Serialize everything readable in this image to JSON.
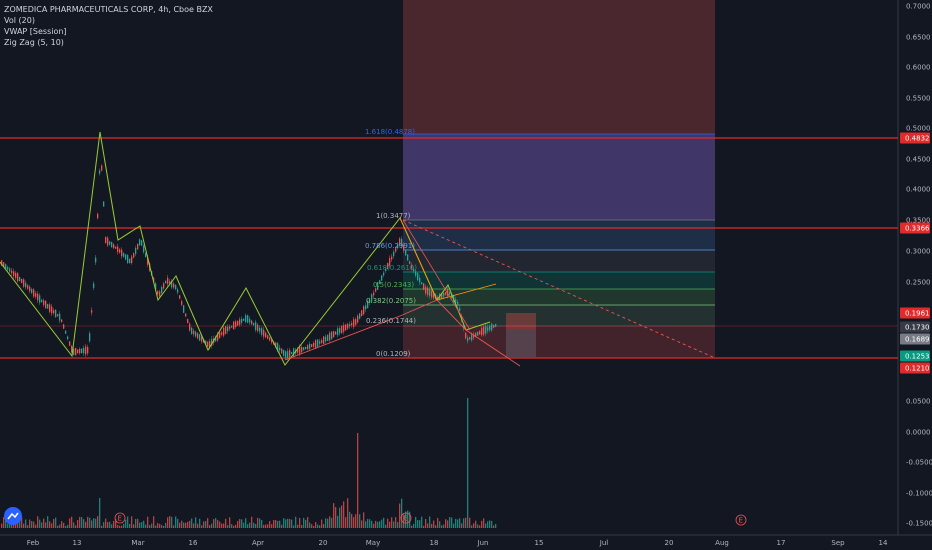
{
  "legend": {
    "title": "ZOMEDICA PHARMACEUTICALS CORP, 4h, Cboe BZX",
    "vol": "Vol (20)",
    "vwap": "VWAP [Session]",
    "zigzag": "Zig Zag (5, 10)"
  },
  "price_axis": {
    "ticks": [
      "0.7000",
      "0.6500",
      "0.6000",
      "0.5500",
      "0.5000",
      "0.4500",
      "0.4000",
      "0.3500",
      "0.3000",
      "0.2500"
    ],
    "tick_values": [
      0.7,
      0.65,
      0.6,
      0.55,
      0.5,
      0.45,
      0.4,
      0.35,
      0.3,
      0.25
    ]
  },
  "volume_axis": {
    "ticks": [
      "0.0500",
      "0.0000",
      "-0.0500",
      "-0.1000",
      "-0.1500"
    ]
  },
  "price_tags": [
    {
      "label": "0.4832",
      "color": "#e12a2a"
    },
    {
      "label": "0.3366",
      "color": "#e12a2a"
    },
    {
      "label": "0.1961",
      "color": "#e12a2a"
    },
    {
      "label": "0.1730",
      "color": "#363a45"
    },
    {
      "label": "0.1689",
      "color": "#787b86"
    },
    {
      "label": "0.1253",
      "color": "#089981"
    },
    {
      "label": "0.1210",
      "color": "#e12a2a"
    }
  ],
  "fib_levels": [
    {
      "label": "1.618(0.4878)"
    },
    {
      "label": "1(0.3477)"
    },
    {
      "label": "0.786(0.2991)"
    },
    {
      "label": "0.618(0.2610)"
    },
    {
      "label": "0.5(0.2343)"
    },
    {
      "label": "0.382(0.2075)"
    },
    {
      "label": "0.236(0.1744)"
    },
    {
      "label": "0(0.1209)"
    }
  ],
  "time_axis": {
    "labels": [
      "Feb",
      "13",
      "Mar",
      "16",
      "Apr",
      "20",
      "May",
      "18",
      "Jun",
      "15",
      "Jul",
      "20",
      "Aug",
      "17",
      "Sep",
      "14"
    ]
  },
  "earnings_marker": "E",
  "colors": {
    "background": "#131722",
    "up": "#26a69a",
    "down": "#ef5350",
    "zigzag": "#9acd32",
    "hline": "#e12a2a"
  }
}
